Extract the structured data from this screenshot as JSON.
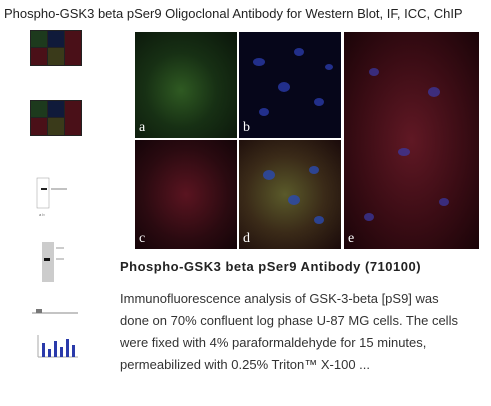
{
  "header": {
    "title": "Phospho-GSK3 beta pSer9 Oligoclonal Antibody for Western Blot, IF, ICC, ChIP"
  },
  "figure": {
    "panel_labels": [
      "a",
      "b",
      "c",
      "d",
      "e"
    ]
  },
  "product": {
    "title": "Phospho-GSK3 beta pSer9 Antibody (710100)",
    "description_lines": [
      "Immunofluorescence analysis of GSK-3-beta [pS9] was",
      "done on 70% confluent log phase U-87 MG cells. The cells",
      "were fixed with 4% paraformaldehyde for 15 minutes,",
      "permeabilized with 0.25% Triton™ X-100 ..."
    ]
  }
}
